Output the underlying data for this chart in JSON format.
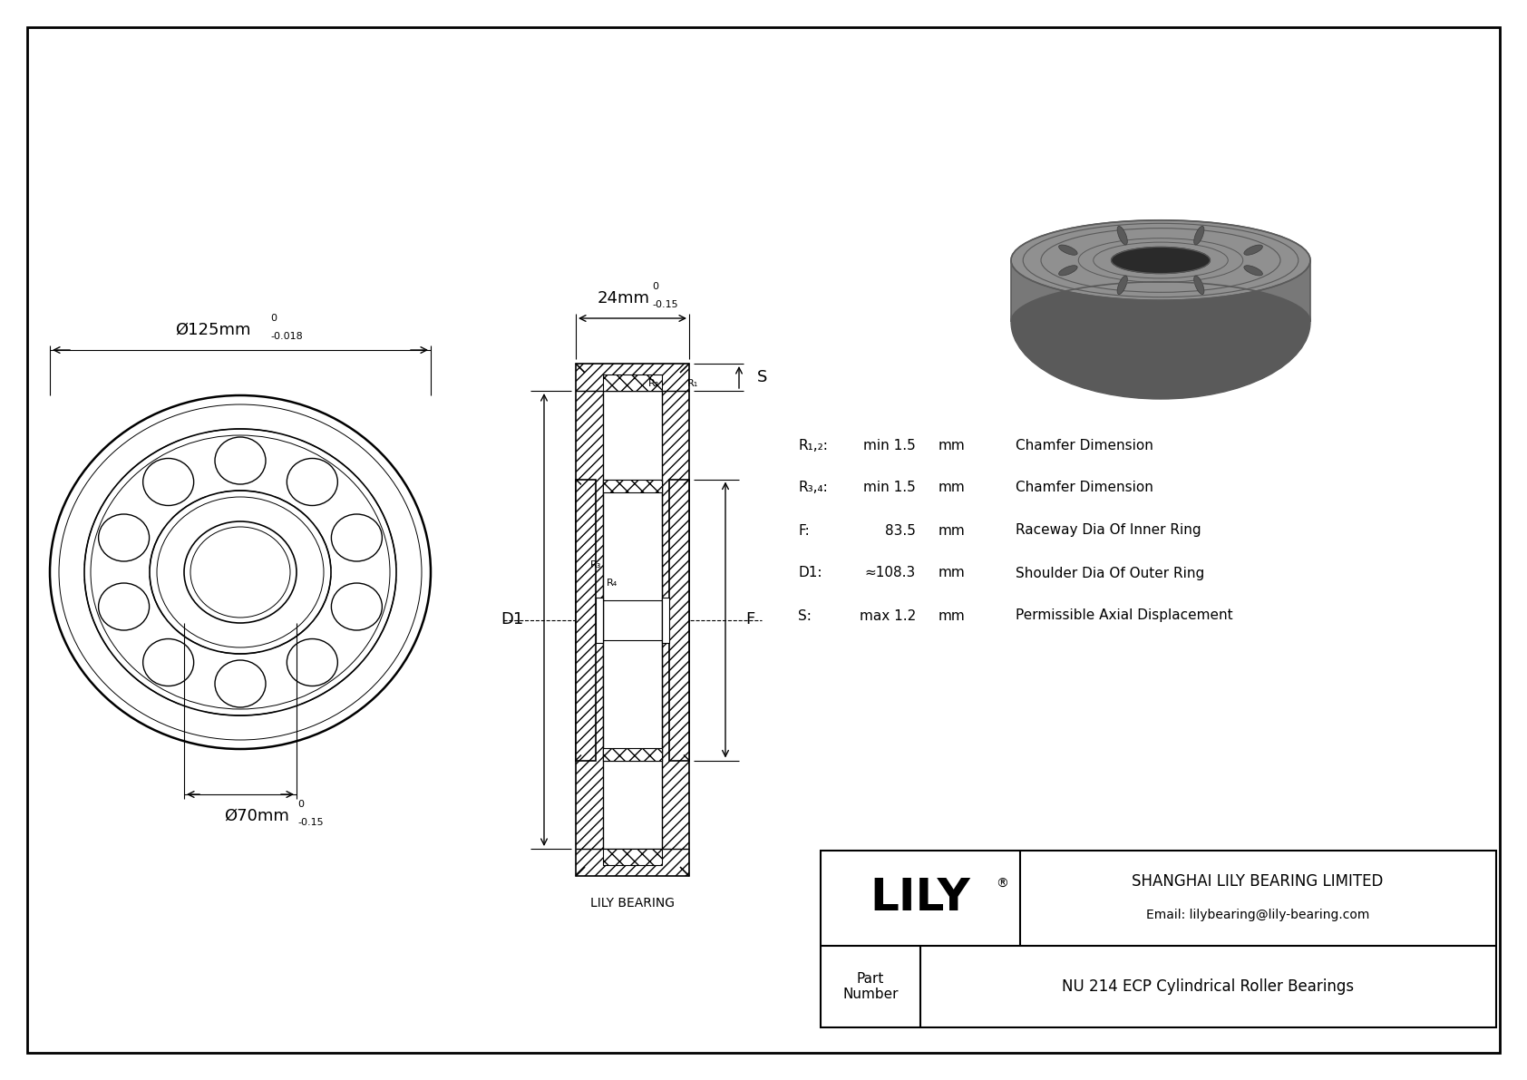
{
  "bg_color": "#ffffff",
  "line_color": "#000000",
  "specs": [
    {
      "label": "R₁,₂:",
      "value": "min 1.5",
      "unit": "mm",
      "desc": "Chamfer Dimension"
    },
    {
      "label": "R₃,₄:",
      "value": "min 1.5",
      "unit": "mm",
      "desc": "Chamfer Dimension"
    },
    {
      "label": "F:",
      "value": "83.5",
      "unit": "mm",
      "desc": "Raceway Dia Of Inner Ring"
    },
    {
      "label": "D1:",
      "value": "≈108.3",
      "unit": "mm",
      "desc": "Shoulder Dia Of Outer Ring"
    },
    {
      "label": "S:",
      "value": "max 1.2",
      "unit": "mm",
      "desc": "Permissible Axial Displacement"
    }
  ],
  "company": "SHANGHAI LILY BEARING LIMITED",
  "email": "Email: lilybearing@lily-bearing.com",
  "part_number": "NU 214 ECP Cylindrical Roller Bearings",
  "lily_bearing_label": "LILY BEARING",
  "outer_diam_main": "Ø125mm",
  "outer_diam_tol_top": "0",
  "outer_diam_tol_bot": "-0.018",
  "inner_diam_main": "Ø70mm",
  "inner_diam_tol_top": "0",
  "inner_diam_tol_bot": "-0.15",
  "width_main": "24mm",
  "width_tol_top": "0",
  "width_tol_bot": "-0.15"
}
